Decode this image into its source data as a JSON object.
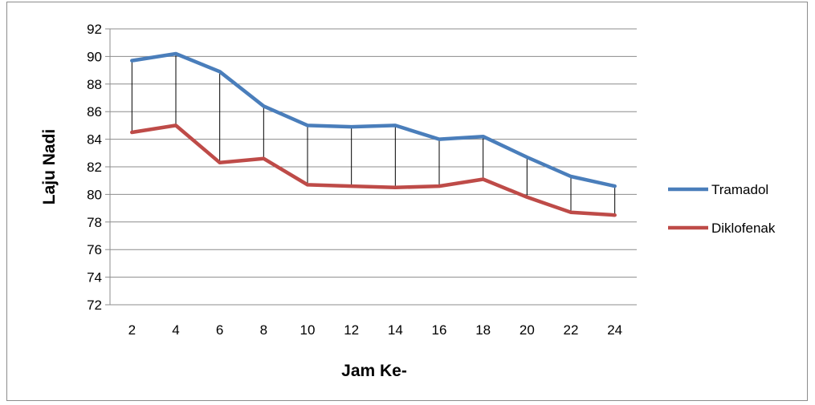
{
  "chart_data": {
    "type": "line",
    "title": "",
    "xlabel": "Jam Ke-",
    "ylabel": "Laju Nadi",
    "x": [
      2,
      4,
      6,
      8,
      10,
      12,
      14,
      16,
      18,
      20,
      22,
      24
    ],
    "ylim": [
      72,
      92
    ],
    "yticks": [
      72,
      74,
      76,
      78,
      80,
      82,
      84,
      86,
      88,
      90,
      92
    ],
    "grid": true,
    "legend_position": "right",
    "drop_lines": true,
    "series": [
      {
        "name": "Tramadol",
        "color": "#4a7ebb",
        "values": [
          89.7,
          90.2,
          88.9,
          86.4,
          85.0,
          84.9,
          85.0,
          84.0,
          84.2,
          82.7,
          81.3,
          80.6
        ]
      },
      {
        "name": "Diklofenak",
        "color": "#be4b48",
        "values": [
          84.5,
          85.0,
          82.3,
          82.6,
          80.7,
          80.6,
          80.5,
          80.6,
          81.1,
          79.8,
          78.7,
          78.5
        ]
      }
    ]
  }
}
